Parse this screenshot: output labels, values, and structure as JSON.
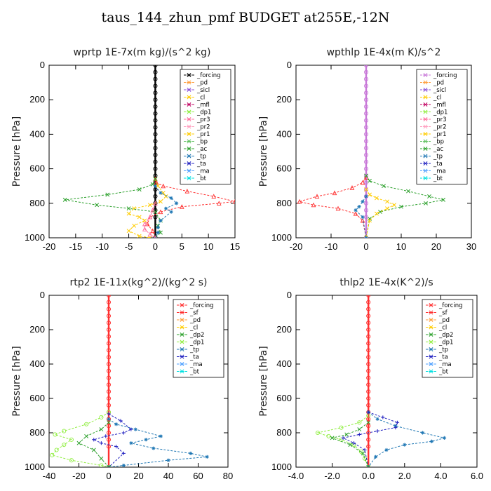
{
  "figure": {
    "title": "taus_144_zhun_pmf  BUDGET at255E,-12N"
  },
  "chart_data": [
    {
      "type": "line",
      "title": "wprtp   1E-7x(m kg)/(s^2 kg)",
      "ylabel": "Pressure [hPa]",
      "xlim": [
        -20,
        15
      ],
      "ylim": [
        1000,
        0
      ],
      "xticks": [
        "-20",
        "-15",
        "-10",
        "-5",
        "0",
        "5",
        "10",
        "15"
      ],
      "yticks": [
        "0",
        "200",
        "400",
        "600",
        "800",
        "1000"
      ],
      "legend": [
        "_forcing",
        "_pd",
        "_sicl",
        "_cl",
        "_mfl",
        "_dp1",
        "_pr3",
        "_pr2",
        "_pr1",
        "_bp",
        "_ac",
        "_tp",
        "_ta",
        "_ma",
        "_bt"
      ],
      "legend_position": "top-right",
      "series": [
        {
          "name": "_forcing",
          "color": "#000000",
          "marker": "circle",
          "x": [
            0,
            0,
            0,
            0,
            0,
            0,
            0,
            0,
            0,
            0,
            0,
            0,
            0,
            0,
            0,
            0,
            0,
            0,
            0,
            0,
            0,
            0,
            0,
            0
          ],
          "y": [
            0,
            40,
            80,
            120,
            160,
            200,
            240,
            280,
            320,
            360,
            400,
            440,
            480,
            520,
            560,
            600,
            640,
            680,
            720,
            760,
            800,
            840,
            880,
            1000
          ]
        },
        {
          "name": "_dp1",
          "color": "#ff3030",
          "marker": "triangle",
          "x": [
            0,
            0.2,
            1.5,
            6,
            11,
            15,
            12,
            5,
            1,
            -1,
            -1.5,
            -0.5,
            0
          ],
          "y": [
            660,
            680,
            700,
            730,
            760,
            790,
            800,
            820,
            850,
            880,
            920,
            960,
            1000
          ]
        },
        {
          "name": "_pr1",
          "color": "#ffcc00",
          "marker": "x",
          "x": [
            0,
            0.5,
            1.5,
            2,
            1,
            -1,
            -4,
            -5,
            -3,
            -2,
            -4,
            -5,
            -3,
            -1
          ],
          "y": [
            660,
            700,
            740,
            760,
            790,
            810,
            830,
            860,
            880,
            900,
            930,
            960,
            990,
            1000
          ]
        },
        {
          "name": "_ac",
          "color": "#2ca02c",
          "marker": "x",
          "x": [
            0,
            -0.5,
            -3,
            -9,
            -17,
            -11,
            -5,
            0,
            1,
            0.5,
            1,
            0
          ],
          "y": [
            660,
            690,
            720,
            750,
            780,
            810,
            830,
            850,
            900,
            930,
            970,
            1000
          ]
        },
        {
          "name": "_tp",
          "color": "#1f77b4",
          "marker": "star",
          "x": [
            0,
            1,
            3,
            4,
            2,
            3,
            1,
            0.5,
            0.5,
            0
          ],
          "y": [
            700,
            740,
            770,
            800,
            830,
            850,
            900,
            940,
            970,
            1000
          ]
        },
        {
          "name": "_pr3",
          "color": "#ff6b9b",
          "marker": "triangle",
          "x": [
            0,
            -0.5,
            -1,
            -2,
            -2,
            -1,
            0
          ],
          "y": [
            800,
            840,
            880,
            920,
            950,
            980,
            1000
          ]
        }
      ]
    },
    {
      "type": "line",
      "title": "wpthlp   1E-4x(m K)/s^2",
      "ylabel": "Pressure [hPa]",
      "xlim": [
        -20,
        30
      ],
      "ylim": [
        1000,
        0
      ],
      "xticks": [
        "-20",
        "-10",
        "0",
        "10",
        "20",
        "30"
      ],
      "yticks": [
        "0",
        "200",
        "400",
        "600",
        "800",
        "1000"
      ],
      "legend": [
        "_forcing",
        "_pd",
        "_sicl",
        "_cl",
        "_mfl",
        "_dp1",
        "_pr3",
        "_pr2",
        "_pr1",
        "_bp",
        "_ac",
        "_tp",
        "_ta",
        "_ma",
        "_bt"
      ],
      "legend_position": "top-right",
      "series": [
        {
          "name": "_forcing",
          "color": "#c878d8",
          "marker": "circle",
          "x": [
            0,
            0,
            0,
            0,
            0,
            0,
            0,
            0,
            0,
            0,
            0,
            0,
            0,
            0,
            0,
            0,
            0,
            0,
            0,
            0,
            0,
            0,
            0,
            0
          ],
          "y": [
            0,
            40,
            80,
            120,
            160,
            200,
            240,
            280,
            320,
            360,
            400,
            440,
            480,
            520,
            560,
            600,
            640,
            680,
            720,
            760,
            800,
            840,
            880,
            1000
          ]
        },
        {
          "name": "_dp1",
          "color": "#ff3030",
          "marker": "triangle",
          "x": [
            0,
            -1,
            -4,
            -9,
            -14,
            -19,
            -15,
            -8,
            -3,
            -1,
            0
          ],
          "y": [
            650,
            680,
            710,
            740,
            760,
            790,
            810,
            830,
            860,
            900,
            1000
          ]
        },
        {
          "name": "_ac",
          "color": "#2ca02c",
          "marker": "x",
          "x": [
            0,
            1,
            5,
            12,
            18,
            22,
            17,
            10,
            4,
            1,
            0
          ],
          "y": [
            640,
            670,
            700,
            730,
            760,
            780,
            800,
            820,
            850,
            890,
            1000
          ]
        },
        {
          "name": "_pr1",
          "color": "#ffcc00",
          "marker": "x",
          "x": [
            0,
            1,
            3,
            6,
            8,
            6,
            3,
            1,
            0
          ],
          "y": [
            720,
            750,
            770,
            790,
            810,
            830,
            860,
            900,
            1000
          ]
        },
        {
          "name": "_tp",
          "color": "#1f77b4",
          "marker": "star",
          "x": [
            0,
            -1,
            -2,
            -3,
            -1,
            0
          ],
          "y": [
            760,
            790,
            820,
            840,
            880,
            1000
          ]
        }
      ]
    },
    {
      "type": "line",
      "title": "rtp2   1E-11x(kg^2)/(kg^2 s)",
      "ylabel": "Pressure [hPa]",
      "xlim": [
        -40,
        80
      ],
      "ylim": [
        1000,
        0
      ],
      "xticks": [
        "-40",
        "-20",
        "0",
        "20",
        "40",
        "60",
        "80"
      ],
      "yticks": [
        "0",
        "200",
        "400",
        "600",
        "800",
        "1000"
      ],
      "legend": [
        "_forcing",
        "_sf",
        "_pd",
        "_cl",
        "_dp2",
        "_dp1",
        "_tp",
        "_ta",
        "_ma",
        "_bt"
      ],
      "legend_position": "top-right",
      "series": [
        {
          "name": "_forcing",
          "color": "#ff3030",
          "marker": "circle",
          "x": [
            0,
            0,
            0,
            0,
            0,
            0,
            0,
            0,
            0,
            0,
            0,
            0,
            0,
            0,
            0,
            0,
            0,
            0,
            0,
            0,
            0,
            0,
            0,
            0
          ],
          "y": [
            0,
            40,
            80,
            120,
            160,
            200,
            240,
            280,
            320,
            360,
            400,
            440,
            480,
            520,
            560,
            600,
            640,
            680,
            720,
            760,
            800,
            840,
            880,
            1000
          ]
        },
        {
          "name": "_dp1",
          "color": "#90ee40",
          "marker": "circle",
          "x": [
            0,
            -5,
            -15,
            -30,
            -36,
            -25,
            -30,
            -35,
            -38,
            -25,
            -5,
            0
          ],
          "y": [
            680,
            710,
            750,
            790,
            810,
            840,
            870,
            900,
            930,
            960,
            990,
            1000
          ]
        },
        {
          "name": "_tp",
          "color": "#1f77b4",
          "marker": "star",
          "x": [
            0,
            5,
            18,
            35,
            25,
            15,
            30,
            55,
            66,
            40,
            10,
            0
          ],
          "y": [
            720,
            750,
            780,
            820,
            840,
            860,
            890,
            920,
            940,
            960,
            990,
            1000
          ]
        },
        {
          "name": "_ta",
          "color": "#2020c0",
          "marker": "plus",
          "x": [
            0,
            8,
            15,
            10,
            -2,
            -10,
            -5,
            5,
            10,
            0
          ],
          "y": [
            690,
            730,
            780,
            800,
            820,
            840,
            860,
            880,
            920,
            1000
          ]
        },
        {
          "name": "_dp2",
          "color": "#2ca02c",
          "marker": "x",
          "x": [
            0,
            -5,
            -15,
            -20,
            -10,
            -5,
            0
          ],
          "y": [
            740,
            780,
            820,
            860,
            900,
            950,
            1000
          ]
        }
      ]
    },
    {
      "type": "line",
      "title": "thlp2   1E-4x(K^2)/s",
      "ylabel": "Pressure [hPa]",
      "xlim": [
        -4,
        6
      ],
      "ylim": [
        1000,
        0
      ],
      "xticks": [
        "-4.0",
        "-2.0",
        "0.0",
        "2.0",
        "4.0",
        "6.0"
      ],
      "yticks": [
        "0",
        "200",
        "400",
        "600",
        "800",
        "1000"
      ],
      "legend": [
        "_forcing",
        "_sf",
        "_pd",
        "_cl",
        "_dp2",
        "_dp1",
        "_tp",
        "_ta",
        "_ma",
        "_bt"
      ],
      "legend_position": "top-right",
      "series": [
        {
          "name": "_forcing",
          "color": "#ff3030",
          "marker": "circle",
          "x": [
            0,
            0,
            0,
            0,
            0,
            0,
            0,
            0,
            0,
            0,
            0,
            0,
            0,
            0,
            0,
            0,
            0,
            0,
            0,
            0,
            0,
            0,
            0,
            0
          ],
          "y": [
            0,
            40,
            80,
            120,
            160,
            200,
            240,
            280,
            320,
            360,
            400,
            440,
            480,
            520,
            560,
            600,
            640,
            680,
            720,
            760,
            800,
            840,
            880,
            1000
          ]
        },
        {
          "name": "_dp1",
          "color": "#90ee40",
          "marker": "circle",
          "x": [
            0,
            -0.5,
            -1.5,
            -2.8,
            -2.2,
            -1.5,
            -0.8,
            -0.4,
            -0.2,
            0
          ],
          "y": [
            700,
            740,
            770,
            800,
            820,
            840,
            870,
            910,
            950,
            1000
          ]
        },
        {
          "name": "_tp",
          "color": "#1f77b4",
          "marker": "star",
          "x": [
            0,
            0.5,
            1.5,
            3.0,
            4.2,
            3.5,
            2.0,
            1.0,
            0.4,
            0
          ],
          "y": [
            680,
            720,
            760,
            800,
            830,
            850,
            870,
            900,
            940,
            1000
          ]
        },
        {
          "name": "_ta",
          "color": "#2020c0",
          "marker": "plus",
          "x": [
            0,
            0.8,
            1.6,
            1.5,
            0.5,
            -0.5,
            -1.4,
            -0.8,
            -0.2,
            0
          ],
          "y": [
            680,
            710,
            740,
            770,
            790,
            810,
            830,
            860,
            900,
            1000
          ]
        },
        {
          "name": "_dp2",
          "color": "#2ca02c",
          "marker": "x",
          "x": [
            0,
            -0.5,
            -1.2,
            -2.0,
            -1.0,
            -0.3,
            0
          ],
          "y": [
            740,
            780,
            810,
            830,
            870,
            920,
            1000
          ]
        }
      ]
    }
  ]
}
